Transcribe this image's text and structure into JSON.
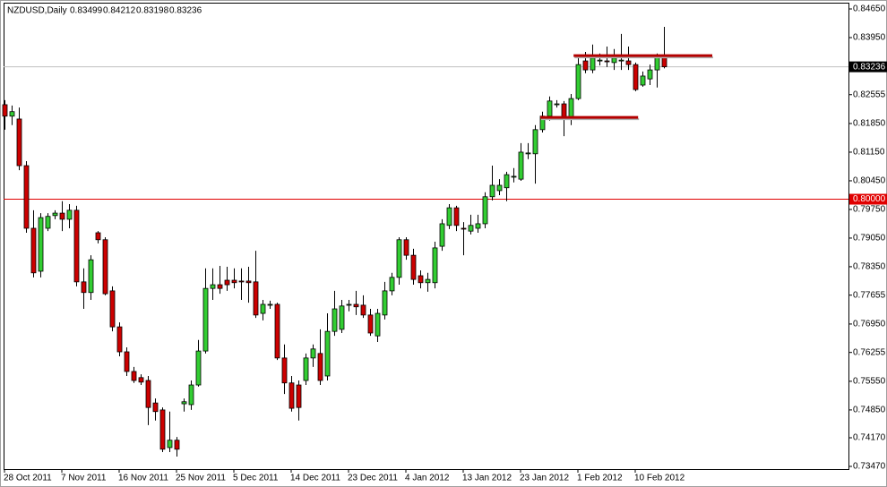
{
  "chart_data": {
    "type": "candlestick",
    "title": "NZDUSD,Daily",
    "categories": [
      "28 Oct 2011",
      null,
      null,
      null,
      null,
      null,
      null,
      null,
      "7 Nov 2011",
      null,
      null,
      null,
      null,
      null,
      null,
      null,
      "16 Nov 2011",
      null,
      null,
      null,
      null,
      null,
      null,
      null,
      "25 Nov 2011",
      null,
      null,
      null,
      null,
      null,
      null,
      null,
      "5 Dec 2011",
      null,
      null,
      null,
      null,
      null,
      null,
      null,
      "14 Dec 2011",
      null,
      null,
      null,
      null,
      null,
      null,
      null,
      "23 Dec 2011",
      null,
      null,
      null,
      null,
      null,
      null,
      null,
      "4 Jan 2012",
      null,
      null,
      null,
      null,
      null,
      null,
      null,
      "13 Jan 2012",
      null,
      null,
      null,
      null,
      null,
      null,
      null,
      "23 Jan 2012",
      null,
      null,
      null,
      null,
      null,
      null,
      null,
      "1 Feb 2012",
      null,
      null,
      null,
      null,
      null,
      null,
      null,
      "10 Feb 2012",
      null,
      null,
      null,
      null
    ],
    "open": [
      0.8231,
      0.8203,
      0.8196,
      0.8082,
      0.7929,
      0.7824,
      0.7929,
      0.796,
      0.7966,
      0.7951,
      0.7973,
      0.7798,
      0.7772,
      0.7918,
      0.7901,
      0.7776,
      0.7688,
      0.7627,
      0.7579,
      0.7564,
      0.7557,
      0.7502,
      0.7485,
      0.7393,
      0.7411,
      0.75,
      0.7498,
      0.7546,
      0.7629,
      0.7782,
      0.7791,
      0.7802,
      0.7802,
      0.78,
      0.78,
      0.7798,
      0.7721,
      0.7741,
      0.7743,
      0.7612,
      0.7551,
      0.7546,
      0.7557,
      0.7612,
      0.7623,
      0.7568,
      0.7677,
      0.7682,
      0.7741,
      0.7743,
      0.7741,
      0.7717,
      0.7666,
      0.7717,
      0.7776,
      0.7809,
      0.7901,
      0.7863,
      0.7813,
      0.7796,
      0.7796,
      0.7885,
      0.7936,
      0.7979,
      0.7929,
      0.7922,
      0.7929,
      0.794,
      0.8006,
      0.8021,
      0.8028,
      0.8054,
      0.8049,
      0.8111,
      0.8111,
      0.817,
      0.8203,
      0.8231,
      0.8233,
      0.8196,
      0.8246,
      0.8338,
      0.8316,
      0.8338,
      0.8338,
      0.8334,
      0.8338,
      0.8338,
      0.8329,
      0.8279,
      0.8294,
      0.8316,
      0.83499
    ],
    "high": [
      0.8242,
      0.8229,
      0.8224,
      0.8093,
      0.7973,
      0.7966,
      0.7966,
      0.7973,
      0.7995,
      0.7988,
      0.7984,
      0.7831,
      0.7863,
      0.7922,
      0.7907,
      0.7787,
      0.7699,
      0.7638,
      0.759,
      0.7572,
      0.7568,
      0.7513,
      0.7491,
      0.7481,
      0.7419,
      0.7513,
      0.7557,
      0.7656,
      0.7831,
      0.7831,
      0.7837,
      0.7835,
      0.7831,
      0.7831,
      0.7835,
      0.7874,
      0.7754,
      0.7752,
      0.7747,
      0.7645,
      0.7568,
      0.7557,
      0.7623,
      0.7645,
      0.7682,
      0.7721,
      0.7776,
      0.7754,
      0.7754,
      0.7776,
      0.7765,
      0.7732,
      0.7732,
      0.7798,
      0.782,
      0.7907,
      0.7907,
      0.7879,
      0.7826,
      0.782,
      0.7896,
      0.7951,
      0.7988,
      0.7984,
      0.7944,
      0.7962,
      0.7962,
      0.8017,
      0.8082,
      0.8049,
      0.8067,
      0.8076,
      0.8137,
      0.8137,
      0.8181,
      0.8214,
      0.8251,
      0.8242,
      0.824,
      0.8257,
      0.8345,
      0.836,
      0.8378,
      0.8356,
      0.8373,
      0.8367,
      0.8404,
      0.8373,
      0.8334,
      0.8312,
      0.8329,
      0.8356,
      0.84212
    ],
    "low": [
      0.817,
      0.8181,
      0.8071,
      0.7918,
      0.7809,
      0.7809,
      0.7922,
      0.7951,
      0.7922,
      0.7929,
      0.7787,
      0.7732,
      0.7754,
      0.7892,
      0.7765,
      0.7677,
      0.7616,
      0.7568,
      0.7551,
      0.7546,
      0.7448,
      0.7459,
      0.7382,
      0.7382,
      0.7371,
      0.7481,
      0.7485,
      0.7542,
      0.7623,
      0.7754,
      0.7769,
      0.7776,
      0.7782,
      0.7754,
      0.7747,
      0.771,
      0.7704,
      0.7732,
      0.7607,
      0.7524,
      0.7481,
      0.7459,
      0.7546,
      0.759,
      0.7546,
      0.7557,
      0.7666,
      0.7673,
      0.7726,
      0.7717,
      0.771,
      0.7666,
      0.7651,
      0.7706,
      0.7765,
      0.7791,
      0.7852,
      0.7791,
      0.7782,
      0.7774,
      0.7782,
      0.7874,
      0.7927,
      0.7922,
      0.7863,
      0.7914,
      0.7918,
      0.7929,
      0.7997,
      0.801,
      0.7995,
      0.8041,
      0.8045,
      0.8098,
      0.8038,
      0.8163,
      0.8192,
      0.8224,
      0.8154,
      0.8181,
      0.8242,
      0.8308,
      0.8308,
      0.8327,
      0.8323,
      0.8316,
      0.8316,
      0.8316,
      0.8264,
      0.8275,
      0.8279,
      0.8273,
      0.83198
    ],
    "close": [
      0.8203,
      0.8214,
      0.8082,
      0.7929,
      0.782,
      0.7955,
      0.7958,
      0.7966,
      0.7951,
      0.7973,
      0.7798,
      0.7772,
      0.7852,
      0.7901,
      0.7769,
      0.7688,
      0.7627,
      0.7579,
      0.7557,
      0.7553,
      0.7491,
      0.7481,
      0.7389,
      0.7411,
      0.7389,
      0.7505,
      0.7546,
      0.7629,
      0.7782,
      0.7791,
      0.7782,
      0.7791,
      0.7796,
      0.7798,
      0.7796,
      0.7717,
      0.7743,
      0.7743,
      0.7612,
      0.7551,
      0.7489,
      0.7491,
      0.7612,
      0.7634,
      0.7557,
      0.7677,
      0.7732,
      0.7739,
      0.7743,
      0.7737,
      0.7717,
      0.7673,
      0.7721,
      0.7776,
      0.7809,
      0.7901,
      0.7863,
      0.7804,
      0.7796,
      0.7804,
      0.7881,
      0.794,
      0.7979,
      0.7936,
      0.7927,
      0.7936,
      0.794,
      0.8006,
      0.8034,
      0.8034,
      0.806,
      0.8056,
      0.8115,
      0.8113,
      0.817,
      0.8203,
      0.824,
      0.8233,
      0.8196,
      0.8246,
      0.8329,
      0.8316,
      0.8345,
      0.834,
      0.8336,
      0.8345,
      0.834,
      0.8329,
      0.8268,
      0.8301,
      0.8316,
      0.8349,
      0.83236
    ],
    "up_color": "#32cd32",
    "down_color": "#cc0000",
    "ylim": [
      0.73404,
      0.84803
    ],
    "yticks": [
      {
        "value": 0.8465,
        "label": "0.84650"
      },
      {
        "value": 0.8395,
        "label": "0.83950"
      },
      0.82555,
      {
        "value": 0.8185,
        "label": "0.81850"
      },
      {
        "value": 0.8115,
        "label": "0.81150"
      },
      {
        "value": 0.8045,
        "label": "0.80450"
      },
      {
        "value": 0.7975,
        "label": "0.79750"
      },
      {
        "value": 0.7905,
        "label": "0.79050"
      },
      {
        "value": 0.7835,
        "label": "0.78350"
      },
      0.77655,
      {
        "value": 0.7695,
        "label": "0.76950"
      },
      0.76255,
      {
        "value": 0.7555,
        "label": "0.75550"
      },
      {
        "value": 0.7485,
        "label": "0.74850"
      },
      {
        "value": 0.7417,
        "label": "0.74170"
      },
      {
        "value": 0.7347,
        "label": "0.73470"
      }
    ],
    "grid": false,
    "hlines": [
      {
        "value": 0.8,
        "label": "0.80000",
        "color": "#e00000"
      }
    ],
    "levels": [
      {
        "value": 0.8351,
        "x": [
          79.4,
          98.75
        ],
        "color": "#b40000"
      },
      {
        "value": 0.82,
        "x": [
          74.75,
          88.4
        ],
        "color": "#b40000"
      }
    ]
  }
}
